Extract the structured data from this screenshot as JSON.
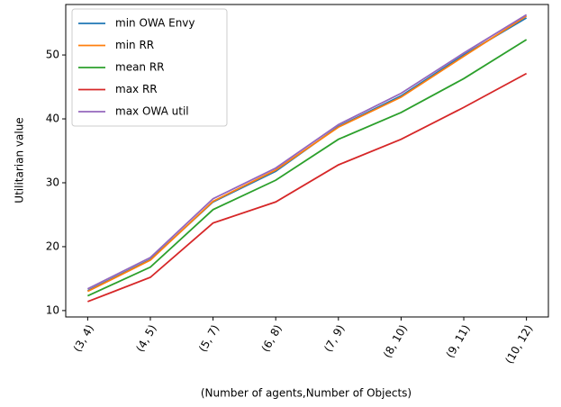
{
  "chart_data": {
    "type": "line",
    "xlabel": "(Number of agents,Number of Objects)",
    "ylabel": "Utilitarian value",
    "categories": [
      "(3, 4)",
      "(4, 5)",
      "(5, 7)",
      "(6, 8)",
      "(7, 9)",
      "(8, 10)",
      "(9, 11)",
      "(10, 12)"
    ],
    "series": [
      {
        "name": "min OWA Envy",
        "color": "#1f77b4",
        "values": [
          13.1,
          18.0,
          27.0,
          31.8,
          38.8,
          43.6,
          50.0,
          55.8
        ]
      },
      {
        "name": "min RR",
        "color": "#ff7f0e",
        "values": [
          13.0,
          17.9,
          27.1,
          32.0,
          38.7,
          43.4,
          49.8,
          56.1
        ]
      },
      {
        "name": "mean RR",
        "color": "#2ca02c",
        "values": [
          12.3,
          16.8,
          25.8,
          30.4,
          36.8,
          41.0,
          46.3,
          52.4
        ]
      },
      {
        "name": "max RR",
        "color": "#d62728",
        "values": [
          11.4,
          15.2,
          23.7,
          27.0,
          32.8,
          36.8,
          41.8,
          47.1
        ]
      },
      {
        "name": "max OWA util",
        "color": "#9467bd",
        "values": [
          13.4,
          18.3,
          27.5,
          32.3,
          39.1,
          44.0,
          50.3,
          56.3
        ]
      }
    ],
    "ylim": [
      9.0,
      57.9
    ],
    "yticks": [
      10,
      20,
      30,
      40,
      50
    ],
    "legend": "upper left",
    "grid": false
  }
}
